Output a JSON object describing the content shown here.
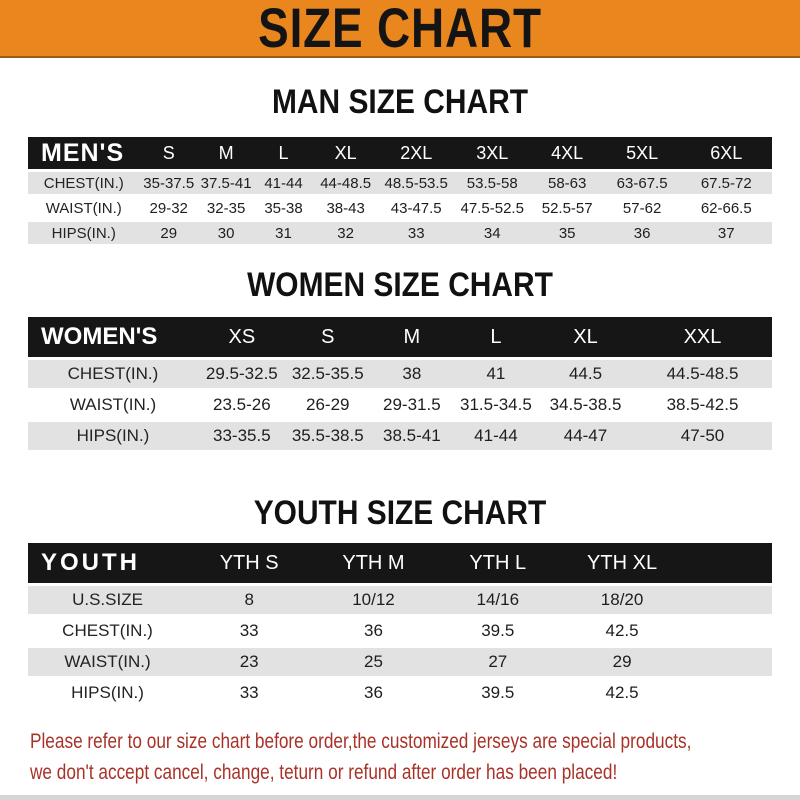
{
  "banner": {
    "title": "SIZE CHART"
  },
  "chart_data": [
    {
      "type": "table",
      "title": "MAN SIZE CHART",
      "row_header": "MEN'S",
      "columns": [
        "S",
        "M",
        "L",
        "XL",
        "2XL",
        "3XL",
        "4XL",
        "5XL",
        "6XL"
      ],
      "rows": [
        {
          "label": "CHEST(IN.)",
          "values": [
            "35-37.5",
            "37.5-41",
            "41-44",
            "44-48.5",
            "48.5-53.5",
            "53.5-58",
            "58-63",
            "63-67.5",
            "67.5-72"
          ]
        },
        {
          "label": "WAIST(IN.)",
          "values": [
            "29-32",
            "32-35",
            "35-38",
            "38-43",
            "43-47.5",
            "47.5-52.5",
            "52.5-57",
            "57-62",
            "62-66.5"
          ]
        },
        {
          "label": "HIPS(IN.)",
          "values": [
            "29",
            "30",
            "31",
            "32",
            "33",
            "34",
            "35",
            "36",
            "37"
          ]
        }
      ],
      "filler_column": false
    },
    {
      "type": "table",
      "title": "WOMEN SIZE CHART",
      "row_header": "WOMEN'S",
      "columns": [
        "XS",
        "S",
        "M",
        "L",
        "XL",
        "XXL"
      ],
      "rows": [
        {
          "label": "CHEST(IN.)",
          "values": [
            "29.5-32.5",
            "32.5-35.5",
            "38",
            "41",
            "44.5",
            "44.5-48.5"
          ]
        },
        {
          "label": "WAIST(IN.)",
          "values": [
            "23.5-26",
            "26-29",
            "29-31.5",
            "31.5-34.5",
            "34.5-38.5",
            "38.5-42.5"
          ]
        },
        {
          "label": "HIPS(IN.)",
          "values": [
            "33-35.5",
            "35.5-38.5",
            "38.5-41",
            "41-44",
            "44-47",
            "47-50"
          ]
        }
      ],
      "filler_column": false
    },
    {
      "type": "table",
      "title": "YOUTH SIZE CHART",
      "row_header": "YOUTH",
      "columns": [
        "YTH S",
        "YTH M",
        "YTH L",
        "YTH XL"
      ],
      "rows": [
        {
          "label": "U.S.SIZE",
          "values": [
            "8",
            "10/12",
            "14/16",
            "18/20"
          ]
        },
        {
          "label": "CHEST(IN.)",
          "values": [
            "33",
            "36",
            "39.5",
            "42.5"
          ]
        },
        {
          "label": "WAIST(IN.)",
          "values": [
            "23",
            "25",
            "27",
            "29"
          ]
        },
        {
          "label": "HIPS(IN.)",
          "values": [
            "33",
            "36",
            "39.5",
            "42.5"
          ]
        }
      ],
      "filler_column": true
    }
  ],
  "footer": {
    "line1": "Please refer to our size chart before order,the customized jerseys are special products,",
    "line2": "we don't accept cancel, change, teturn or refund after order has been placed!"
  },
  "colors": {
    "banner_bg": "#E9861E",
    "banner_border": "#9C5F12",
    "banner_text": "#141414",
    "header_bar_bg": "#161616",
    "header_bar_text": "#FFFFFF",
    "row_gray": "#E2E2E2",
    "row_white": "#FFFFFF",
    "value_text": "#1E1E1E",
    "footer_text": "#A93228",
    "bottom_strip": "#D6D6D6"
  }
}
